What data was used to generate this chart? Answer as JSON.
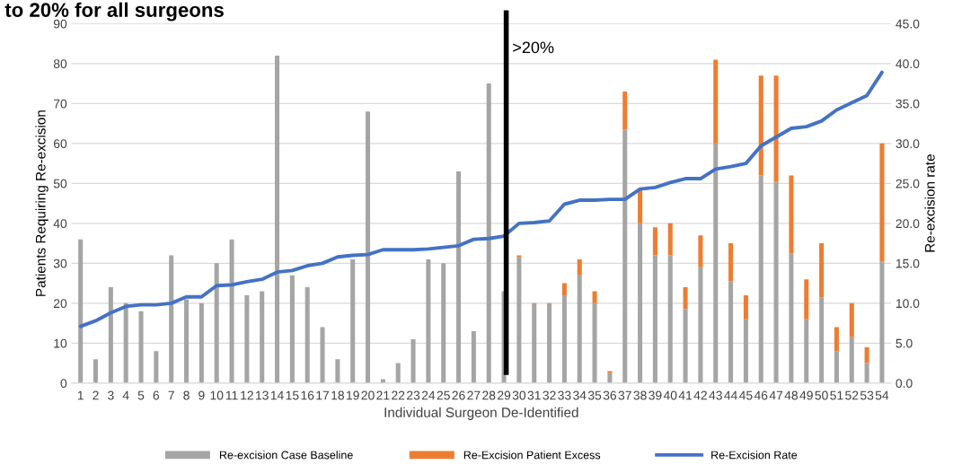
{
  "chart_data": {
    "type": "bar",
    "stacked": true,
    "title": "to 20% for all surgeons",
    "xlabel": "Individual Surgeon De-Identified",
    "ylabel": "Patients Requiring Re-excision",
    "y2label": "Re-excision rate",
    "categories": [
      "1",
      "2",
      "3",
      "4",
      "5",
      "6",
      "7",
      "8",
      "9",
      "10",
      "11",
      "12",
      "13",
      "14",
      "15",
      "16",
      "17",
      "18",
      "19",
      "20",
      "21",
      "22",
      "23",
      "24",
      "25",
      "26",
      "27",
      "28",
      "29",
      "30",
      "31",
      "32",
      "33",
      "34",
      "35",
      "36",
      "37",
      "38",
      "39",
      "40",
      "41",
      "42",
      "43",
      "44",
      "45",
      "46",
      "47",
      "48",
      "49",
      "50",
      "51",
      "52",
      "53",
      "54"
    ],
    "series": [
      {
        "name": "Re-excision Case Baseline",
        "color": "#a5a5a5",
        "values": [
          36,
          6,
          24,
          20,
          18,
          8,
          32,
          21,
          20,
          30,
          36,
          22,
          23,
          82,
          27,
          24,
          14,
          6,
          31,
          68,
          1,
          5,
          11,
          31,
          30,
          53,
          13,
          75,
          23,
          31.5,
          19.8,
          19.8,
          22,
          27,
          20,
          2.5,
          63.5,
          40,
          32,
          32,
          18.5,
          29,
          60,
          25.5,
          16,
          52,
          50.5,
          32.5,
          16,
          21.5,
          8,
          11.5,
          5,
          30.5
        ]
      },
      {
        "name": "Re-Excision Patient Excess",
        "color": "#ed7d31",
        "values": [
          0,
          0,
          0,
          0,
          0,
          0,
          0,
          0,
          0,
          0,
          0,
          0,
          0,
          0,
          0,
          0,
          0,
          0,
          0,
          0,
          0,
          0,
          0,
          0,
          0,
          0,
          0,
          0,
          0,
          0.5,
          0.2,
          0.2,
          3,
          4,
          3,
          0.5,
          9.5,
          8.5,
          7,
          8,
          5.5,
          8,
          21,
          9.5,
          6,
          25,
          26.5,
          19.5,
          10,
          13.5,
          6,
          8.5,
          4,
          29.5
        ]
      },
      {
        "name": "Re-Excision Rate",
        "type": "line",
        "axis": "y2",
        "color": "#4472c4",
        "values": [
          7.1,
          7.8,
          8.8,
          9.6,
          9.8,
          9.8,
          10.0,
          10.8,
          10.8,
          12.2,
          12.3,
          12.7,
          13.0,
          13.9,
          14.1,
          14.7,
          15.0,
          15.8,
          16.0,
          16.1,
          16.7,
          16.7,
          16.7,
          16.8,
          17.0,
          17.2,
          18.0,
          18.1,
          18.4,
          20.0,
          20.1,
          20.3,
          22.4,
          22.9,
          22.9,
          23.0,
          23.0,
          24.3,
          24.5,
          25.1,
          25.6,
          25.6,
          26.8,
          27.1,
          27.5,
          29.7,
          30.8,
          31.9,
          32.1,
          32.8,
          34.2,
          35.1,
          36.0,
          38.9
        ]
      }
    ],
    "ylim": [
      0,
      90
    ],
    "yticks": [
      0,
      10,
      20,
      30,
      40,
      50,
      60,
      70,
      80,
      90
    ],
    "y2lim": [
      0,
      45
    ],
    "y2ticks": [
      {
        "value": 0,
        "label": "0.0"
      },
      {
        "value": 5,
        "label": "5.0"
      },
      {
        "value": 10,
        "label": "10.0"
      },
      {
        "value": 15,
        "label": "15.0"
      },
      {
        "value": 20,
        "label": "20.0"
      },
      {
        "value": 25,
        "label": "25.0"
      },
      {
        "value": 30,
        "label": "30.0"
      },
      {
        "value": 35,
        "label": "35.0"
      },
      {
        "value": 40,
        "label": "40.0"
      },
      {
        "value": 45,
        "label": "45.0"
      }
    ],
    "ref_lines": [
      {
        "axis": "x",
        "value": "29",
        "label": ">20%",
        "color": "#000000"
      }
    ],
    "grid": "y",
    "legend": "bottom",
    "marker": "none"
  }
}
